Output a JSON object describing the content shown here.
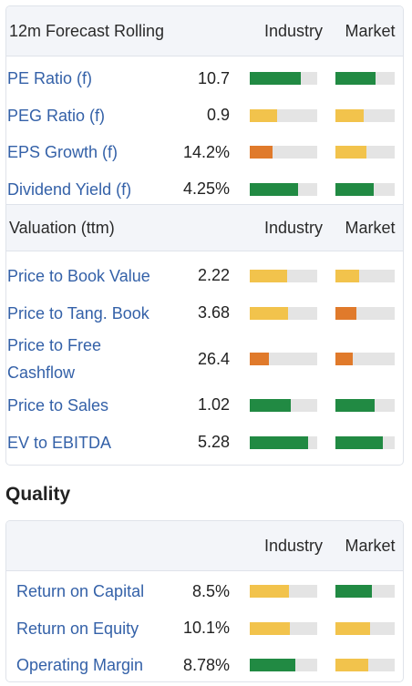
{
  "colors": {
    "green": "#218a43",
    "yellow": "#f2c34c",
    "orange": "#e07a2b",
    "track": "#e4e4e4",
    "link": "#3461a8"
  },
  "forecast": {
    "title": "12m Forecast Rolling",
    "col_industry": "Industry",
    "col_market": "Market",
    "rows": [
      {
        "label": "PE Ratio (f)",
        "value": "10.7",
        "industry": {
          "level": 0.76,
          "color": "green"
        },
        "market": {
          "level": 0.68,
          "color": "green"
        }
      },
      {
        "label": "PEG Ratio (f)",
        "value": "0.9",
        "industry": {
          "level": 0.4,
          "color": "yellow"
        },
        "market": {
          "level": 0.48,
          "color": "yellow"
        }
      },
      {
        "label": "EPS Growth (f)",
        "value": "14.2%",
        "industry": {
          "level": 0.34,
          "color": "orange"
        },
        "market": {
          "level": 0.52,
          "color": "yellow"
        }
      },
      {
        "label": "Dividend Yield (f)",
        "value": "4.25%",
        "industry": {
          "level": 0.72,
          "color": "green"
        },
        "market": {
          "level": 0.65,
          "color": "green"
        }
      }
    ]
  },
  "valuation": {
    "title": "Valuation (ttm)",
    "col_industry": "Industry",
    "col_market": "Market",
    "rows": [
      {
        "label": "Price to Book Value",
        "value": "2.22",
        "industry": {
          "level": 0.55,
          "color": "yellow"
        },
        "market": {
          "level": 0.4,
          "color": "yellow"
        }
      },
      {
        "label": "Price to Tang. Book",
        "value": "3.68",
        "industry": {
          "level": 0.57,
          "color": "yellow"
        },
        "market": {
          "level": 0.36,
          "color": "orange"
        }
      },
      {
        "label": "Price to Free Cashflow",
        "value": "26.4",
        "industry": {
          "level": 0.28,
          "color": "orange"
        },
        "market": {
          "level": 0.29,
          "color": "orange"
        }
      },
      {
        "label": "Price to Sales",
        "value": "1.02",
        "industry": {
          "level": 0.61,
          "color": "green"
        },
        "market": {
          "level": 0.66,
          "color": "green"
        }
      },
      {
        "label": "EV to EBITDA",
        "value": "5.28",
        "industry": {
          "level": 0.86,
          "color": "green"
        },
        "market": {
          "level": 0.8,
          "color": "green"
        }
      }
    ]
  },
  "quality": {
    "heading": "Quality",
    "col_industry": "Industry",
    "col_market": "Market",
    "rows": [
      {
        "label": "Return on Capital",
        "value": "8.5%",
        "industry": {
          "level": 0.58,
          "color": "yellow"
        },
        "market": {
          "level": 0.62,
          "color": "green"
        }
      },
      {
        "label": "Return on Equity",
        "value": "10.1%",
        "industry": {
          "level": 0.59,
          "color": "yellow"
        },
        "market": {
          "level": 0.58,
          "color": "yellow"
        }
      },
      {
        "label": "Operating Margin",
        "value": "8.78%",
        "industry": {
          "level": 0.67,
          "color": "green"
        },
        "market": {
          "level": 0.55,
          "color": "yellow"
        }
      }
    ]
  }
}
